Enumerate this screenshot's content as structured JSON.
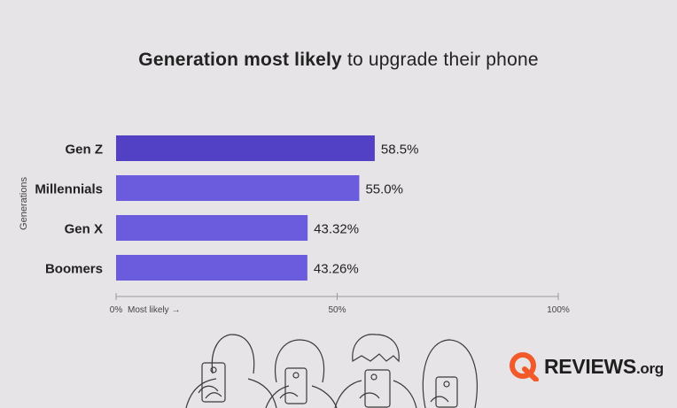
{
  "title": {
    "bold": "Generation most likely",
    "rest": "to upgrade their phone"
  },
  "chart_data": {
    "type": "bar",
    "orientation": "horizontal",
    "title": "Generation most likely to upgrade their phone",
    "ylabel": "Generations",
    "xlabel": "Most likely →",
    "categories": [
      "Gen Z",
      "Millennials",
      "Gen X",
      "Boomers"
    ],
    "values": [
      58.5,
      55.0,
      43.32,
      43.26
    ],
    "value_labels": [
      "58.5%",
      "55.0%",
      "43.32%",
      "43.26%"
    ],
    "xlim": [
      0,
      100
    ],
    "xticks": [
      0,
      50,
      100
    ],
    "xtick_labels": [
      "0%",
      "50%",
      "100%"
    ],
    "colors": [
      "#5241c4",
      "#6a5cdc",
      "#6a5cdc",
      "#6a5cdc"
    ]
  },
  "logo": {
    "brand": "REVIEWS",
    "suffix": ".org",
    "accent": "#f25a29"
  }
}
